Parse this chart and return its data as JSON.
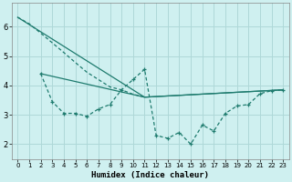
{
  "xlabel": "Humidex (Indice chaleur)",
  "bg_color": "#cff0f0",
  "grid_color": "#aed8d8",
  "line_color": "#1e7b6e",
  "xlim": [
    -0.5,
    23.5
  ],
  "ylim": [
    1.5,
    6.8
  ],
  "yticks": [
    2,
    3,
    4,
    5,
    6
  ],
  "xticks": [
    0,
    1,
    2,
    3,
    4,
    5,
    6,
    7,
    8,
    9,
    10,
    11,
    12,
    13,
    14,
    15,
    16,
    17,
    18,
    19,
    20,
    21,
    22,
    23
  ],
  "line1_x": [
    0,
    1,
    2,
    3,
    4,
    5,
    6,
    7,
    8,
    9,
    10,
    11
  ],
  "line1_y": [
    6.32,
    6.1,
    5.78,
    5.45,
    5.12,
    4.78,
    4.45,
    4.2,
    3.95,
    3.85,
    3.7,
    3.6
  ],
  "line2_x": [
    2,
    3,
    4,
    5,
    6,
    7,
    8,
    9,
    10,
    11,
    12,
    13,
    14,
    15,
    16,
    17,
    18,
    19,
    20,
    21,
    22,
    23
  ],
  "line2_y": [
    4.4,
    3.45,
    3.05,
    3.05,
    2.95,
    3.2,
    3.35,
    3.85,
    4.2,
    4.55,
    2.3,
    2.2,
    2.4,
    2.0,
    2.65,
    2.45,
    3.05,
    3.3,
    3.35,
    3.72,
    3.82,
    3.85
  ],
  "trend1_x": [
    0,
    11,
    23
  ],
  "trend1_y": [
    6.32,
    3.6,
    3.85
  ],
  "trend2_x": [
    2,
    11,
    23
  ],
  "trend2_y": [
    4.4,
    3.6,
    3.85
  ]
}
